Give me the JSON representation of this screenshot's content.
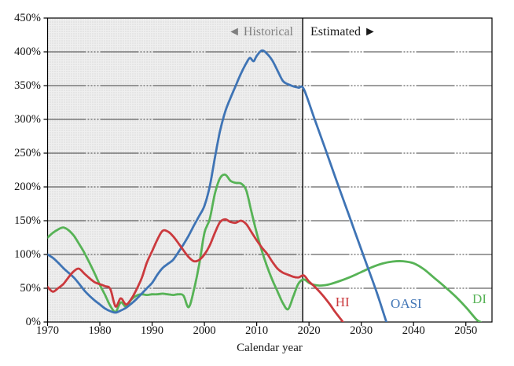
{
  "chart_data": {
    "type": "line",
    "title": "",
    "xlabel": "Calendar year",
    "ylabel": "",
    "x_range": [
      1970,
      2055
    ],
    "y_range": [
      0,
      450
    ],
    "grid": true,
    "legend_position": "inline-labels",
    "x_ticks": [
      {
        "value": 1970,
        "label": "1970"
      },
      {
        "value": 1980,
        "label": "1980"
      },
      {
        "value": 1990,
        "label": "1990"
      },
      {
        "value": 2000,
        "label": "2000"
      },
      {
        "value": 2010,
        "label": "2010"
      },
      {
        "value": 2020,
        "label": "2020"
      },
      {
        "value": 2030,
        "label": "2030"
      },
      {
        "value": 2040,
        "label": "2040"
      },
      {
        "value": 2050,
        "label": "2050"
      }
    ],
    "y_ticks": [
      {
        "value": 0,
        "label": "0%"
      },
      {
        "value": 50,
        "label": "50%"
      },
      {
        "value": 100,
        "label": "100%"
      },
      {
        "value": 150,
        "label": "150%"
      },
      {
        "value": 200,
        "label": "200%"
      },
      {
        "value": 250,
        "label": "250%"
      },
      {
        "value": 300,
        "label": "300%"
      },
      {
        "value": 350,
        "label": "350%"
      },
      {
        "value": 400,
        "label": "400%"
      },
      {
        "value": 450,
        "label": "450%"
      }
    ],
    "regions": {
      "divider_year": 2018.8,
      "historical_label": "◄ Historical",
      "estimated_label": "Estimated ►",
      "historical_shade_color": "#e9e9e9"
    },
    "series": [
      {
        "name": "DI",
        "label": "DI",
        "color": "#57b356",
        "label_anchor": {
          "year": 2052.6,
          "pct": 34
        },
        "points": [
          [
            1970,
            125
          ],
          [
            1971,
            132
          ],
          [
            1972,
            137
          ],
          [
            1973,
            140
          ],
          [
            1974,
            136
          ],
          [
            1975,
            128
          ],
          [
            1976,
            116
          ],
          [
            1977,
            103
          ],
          [
            1978,
            88
          ],
          [
            1979,
            72
          ],
          [
            1980,
            55
          ],
          [
            1981,
            40
          ],
          [
            1982,
            24
          ],
          [
            1983,
            15
          ],
          [
            1984,
            29
          ],
          [
            1985,
            23
          ],
          [
            1986,
            33
          ],
          [
            1987,
            39
          ],
          [
            1988,
            41
          ],
          [
            1989,
            40
          ],
          [
            1990,
            41
          ],
          [
            1991,
            41
          ],
          [
            1992,
            42
          ],
          [
            1993,
            41
          ],
          [
            1994,
            40
          ],
          [
            1995,
            41
          ],
          [
            1996,
            39
          ],
          [
            1997,
            22
          ],
          [
            1998,
            48
          ],
          [
            1999,
            85
          ],
          [
            2000,
            132
          ],
          [
            2001,
            152
          ],
          [
            2002,
            190
          ],
          [
            2003,
            213
          ],
          [
            2004,
            218
          ],
          [
            2005,
            209
          ],
          [
            2006,
            206
          ],
          [
            2007,
            205
          ],
          [
            2008,
            195
          ],
          [
            2009,
            163
          ],
          [
            2010,
            132
          ],
          [
            2011,
            105
          ],
          [
            2012,
            82
          ],
          [
            2013,
            62
          ],
          [
            2014,
            45
          ],
          [
            2015,
            28
          ],
          [
            2016,
            19
          ],
          [
            2017,
            38
          ],
          [
            2018,
            57
          ],
          [
            2019,
            63
          ],
          [
            2020,
            58
          ],
          [
            2021,
            55
          ],
          [
            2022,
            54
          ],
          [
            2023,
            54.5
          ],
          [
            2024,
            56
          ],
          [
            2026,
            61
          ],
          [
            2028,
            67
          ],
          [
            2030,
            74
          ],
          [
            2032,
            81
          ],
          [
            2034,
            86.5
          ],
          [
            2036,
            89.5
          ],
          [
            2038,
            90
          ],
          [
            2040,
            87
          ],
          [
            2042,
            78
          ],
          [
            2044,
            65
          ],
          [
            2046,
            52
          ],
          [
            2048,
            38
          ],
          [
            2050,
            22
          ],
          [
            2052,
            4
          ],
          [
            2052.8,
            0
          ]
        ]
      },
      {
        "name": "OASI",
        "label": "OASI",
        "color": "#3f74b5",
        "label_anchor": {
          "year": 2038.6,
          "pct": 27
        },
        "points": [
          [
            1970,
            100
          ],
          [
            1971,
            95
          ],
          [
            1972,
            88
          ],
          [
            1973,
            80
          ],
          [
            1974,
            73
          ],
          [
            1975,
            66
          ],
          [
            1976,
            57
          ],
          [
            1977,
            47
          ],
          [
            1978,
            39
          ],
          [
            1979,
            32
          ],
          [
            1980,
            26
          ],
          [
            1981,
            20
          ],
          [
            1982,
            16
          ],
          [
            1983,
            14
          ],
          [
            1984,
            17
          ],
          [
            1985,
            21
          ],
          [
            1986,
            27
          ],
          [
            1987,
            34
          ],
          [
            1988,
            42
          ],
          [
            1989,
            50
          ],
          [
            1990,
            58
          ],
          [
            1991,
            70
          ],
          [
            1992,
            80
          ],
          [
            1993,
            86
          ],
          [
            1994,
            92
          ],
          [
            1995,
            103
          ],
          [
            1996,
            115
          ],
          [
            1997,
            128
          ],
          [
            1998,
            143
          ],
          [
            1999,
            157
          ],
          [
            2000,
            172
          ],
          [
            2001,
            200
          ],
          [
            2002,
            243
          ],
          [
            2003,
            283
          ],
          [
            2004,
            312
          ],
          [
            2005,
            332
          ],
          [
            2006,
            350
          ],
          [
            2007,
            368
          ],
          [
            2008,
            383
          ],
          [
            2008.7,
            391
          ],
          [
            2009.4,
            386
          ],
          [
            2010,
            394
          ],
          [
            2011,
            402
          ],
          [
            2012,
            397
          ],
          [
            2013,
            387
          ],
          [
            2014,
            372
          ],
          [
            2015,
            357
          ],
          [
            2016,
            352
          ],
          [
            2017,
            349
          ],
          [
            2018,
            347
          ],
          [
            2019,
            345
          ],
          [
            2021,
            302
          ],
          [
            2023,
            259
          ],
          [
            2025,
            215
          ],
          [
            2027,
            172
          ],
          [
            2029,
            129
          ],
          [
            2031,
            86
          ],
          [
            2033,
            43
          ],
          [
            2034.8,
            0
          ]
        ]
      },
      {
        "name": "HI",
        "label": "HI",
        "color": "#cb3a3e",
        "label_anchor": {
          "year": 2026.4,
          "pct": 29
        },
        "points": [
          [
            1970,
            52
          ],
          [
            1971,
            45
          ],
          [
            1972,
            50
          ],
          [
            1973,
            56
          ],
          [
            1974,
            66
          ],
          [
            1975,
            75
          ],
          [
            1976,
            79
          ],
          [
            1977,
            72
          ],
          [
            1978,
            65
          ],
          [
            1979,
            59
          ],
          [
            1980,
            56
          ],
          [
            1981,
            53
          ],
          [
            1982,
            49
          ],
          [
            1983,
            23
          ],
          [
            1984,
            35
          ],
          [
            1985,
            26
          ],
          [
            1986,
            34
          ],
          [
            1987,
            48
          ],
          [
            1988,
            65
          ],
          [
            1989,
            88
          ],
          [
            1990,
            105
          ],
          [
            1991,
            122
          ],
          [
            1992,
            135
          ],
          [
            1993,
            134
          ],
          [
            1994,
            127
          ],
          [
            1995,
            117
          ],
          [
            1996,
            106
          ],
          [
            1997,
            96
          ],
          [
            1998,
            90
          ],
          [
            1999,
            92
          ],
          [
            2000,
            100
          ],
          [
            2001,
            113
          ],
          [
            2002,
            132
          ],
          [
            2003,
            148
          ],
          [
            2004,
            152
          ],
          [
            2005,
            148
          ],
          [
            2006,
            147
          ],
          [
            2007,
            150
          ],
          [
            2008,
            145
          ],
          [
            2009,
            133
          ],
          [
            2010,
            121
          ],
          [
            2011,
            110
          ],
          [
            2012,
            101
          ],
          [
            2013,
            89
          ],
          [
            2014,
            79
          ],
          [
            2015,
            73
          ],
          [
            2016,
            70
          ],
          [
            2017,
            67
          ],
          [
            2018,
            66
          ],
          [
            2019,
            69
          ],
          [
            2020,
            60
          ],
          [
            2021,
            53
          ],
          [
            2022,
            45
          ],
          [
            2023,
            36
          ],
          [
            2024,
            26
          ],
          [
            2025,
            15
          ],
          [
            2026,
            5
          ],
          [
            2026.5,
            0
          ]
        ]
      }
    ],
    "style": {
      "grid_color": "#3c3c3c",
      "frame_color": "#000000",
      "divider_color": "#000000",
      "tick_text_color": "#111111",
      "historical_text_color": "#7f7f7f"
    }
  }
}
